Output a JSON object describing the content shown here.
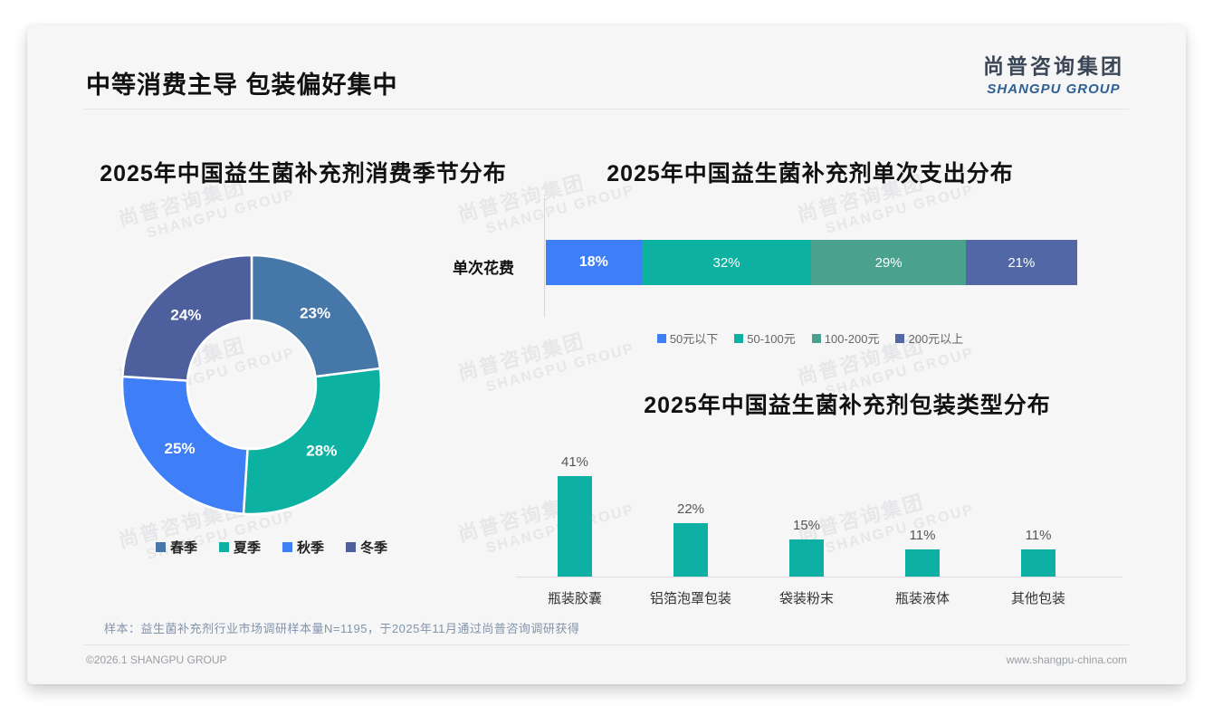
{
  "page": {
    "main_title": "中等消费主导 包装偏好集中",
    "logo": {
      "cn": "尚普咨询集团",
      "en": "SHANGPU GROUP"
    },
    "watermark": {
      "line1": "尚普咨询集团",
      "line2": "SHANGPU GROUP"
    },
    "note": "样本：益生菌补充剂行业市场调研样本量N=1195，于2025年11月通过尚普咨询调研获得",
    "footer_left": "©2026.1 SHANGPU GROUP",
    "footer_right": "www.shangpu-china.com"
  },
  "chart_data": [
    {
      "type": "pie",
      "subtype": "donut",
      "title": "2025年中国益生菌补充剂消费季节分布",
      "categories": [
        "春季",
        "夏季",
        "秋季",
        "冬季"
      ],
      "values": [
        23,
        28,
        25,
        24
      ],
      "colors": [
        "#4577a9",
        "#0db1a2",
        "#3e7ef6",
        "#4e5f9d"
      ],
      "label_format": "percent",
      "legend_position": "bottom",
      "start_angle_deg": 0,
      "direction": "clockwise"
    },
    {
      "type": "bar",
      "subtype": "horizontal-stacked",
      "title": "2025年中国益生菌补充剂单次支出分布",
      "bar_label": "单次花费",
      "categories": [
        "50元以下",
        "50-100元",
        "100-200元",
        "200元以上"
      ],
      "values": [
        18,
        32,
        29,
        21
      ],
      "colors": [
        "#3e7ef6",
        "#0db1a2",
        "#4aa28e",
        "#5267a6"
      ],
      "label_format": "percent",
      "legend_position": "bottom",
      "xlim": [
        0,
        100
      ]
    },
    {
      "type": "bar",
      "subtype": "vertical",
      "title": "2025年中国益生菌补充剂包装类型分布",
      "categories": [
        "瓶装胶囊",
        "铝箔泡罩包装",
        "袋装粉末",
        "瓶装液体",
        "其他包装"
      ],
      "values": [
        41,
        22,
        15,
        11,
        11
      ],
      "bar_color": "#0fb0a4",
      "label_format": "percent",
      "grid": false,
      "ylim": [
        0,
        45
      ]
    }
  ]
}
